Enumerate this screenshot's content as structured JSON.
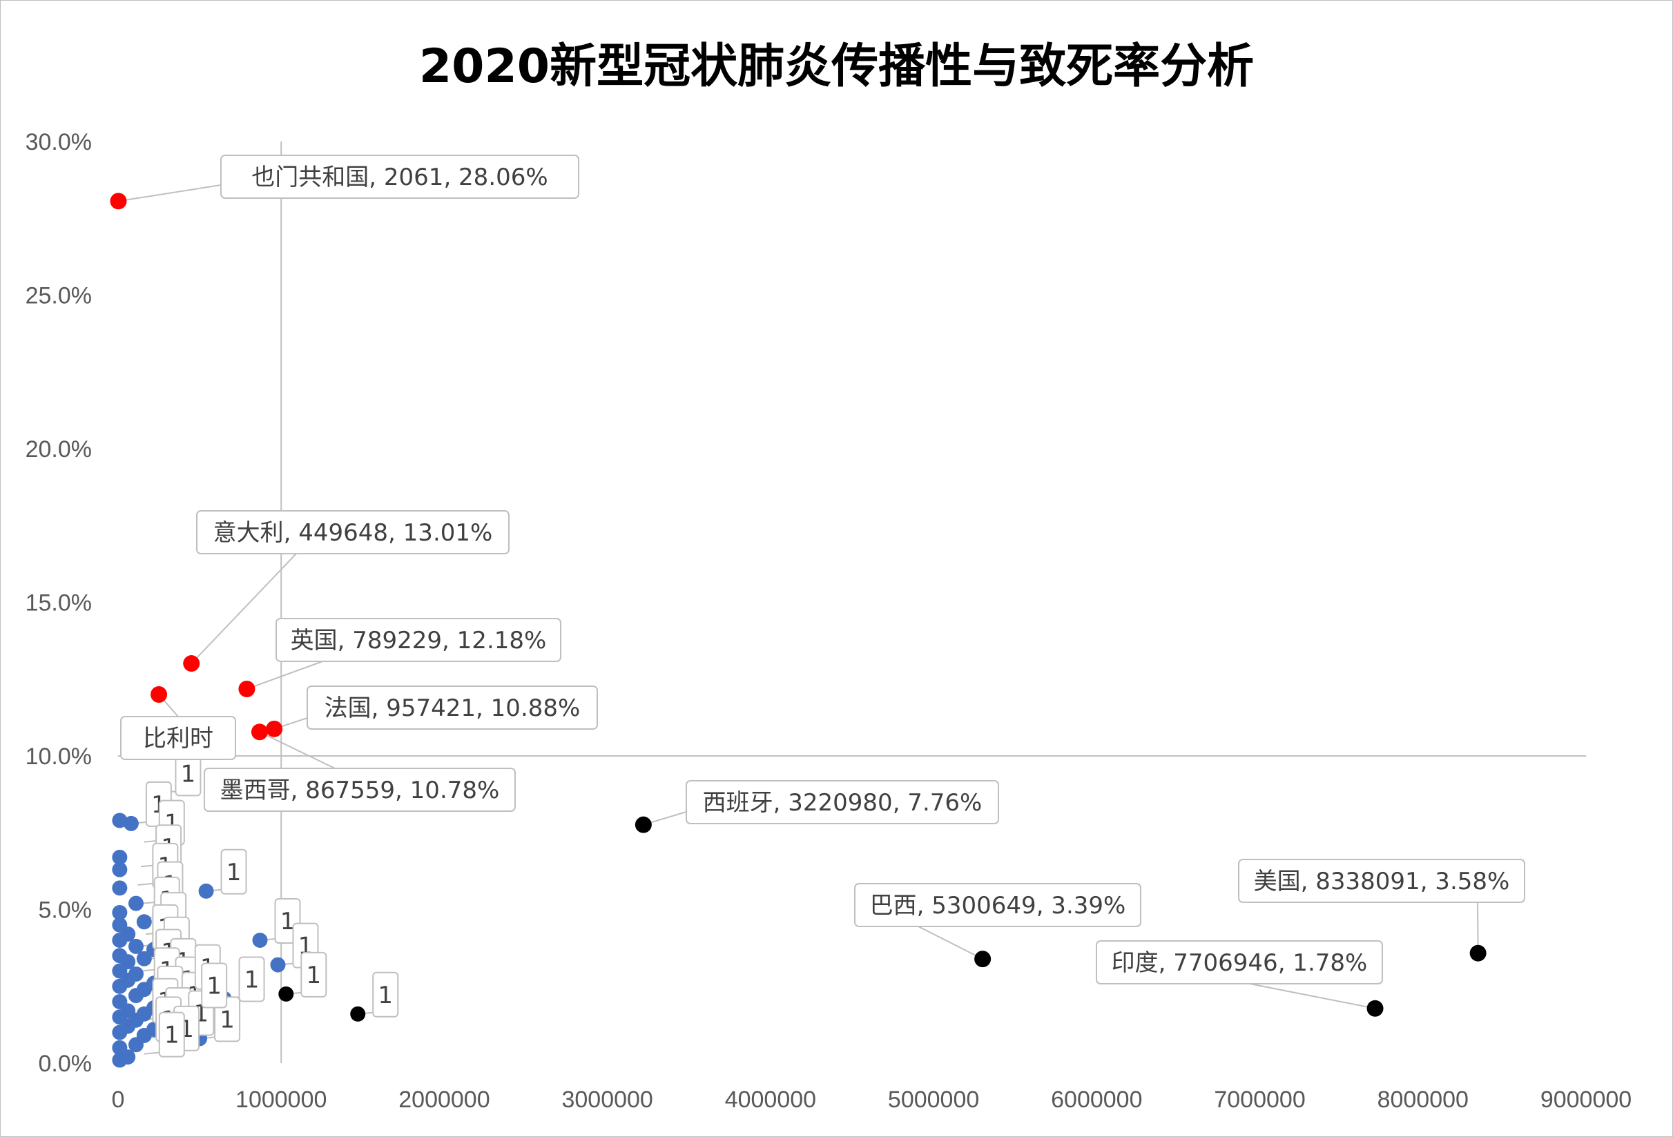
{
  "chart_data": {
    "type": "scatter",
    "title": "2020新型冠状肺炎传播性与致死率分析",
    "xlabel": "",
    "ylabel": "",
    "xlim": [
      0,
      9000000
    ],
    "ylim": [
      0,
      0.3
    ],
    "x_ticks": [
      "0",
      "1000000",
      "2000000",
      "3000000",
      "4000000",
      "5000000",
      "6000000",
      "7000000",
      "8000000",
      "9000000"
    ],
    "y_ticks": [
      "0.0%",
      "5.0%",
      "10.0%",
      "15.0%",
      "20.0%",
      "25.0%",
      "30.0%"
    ],
    "reference_lines": {
      "x": 1000000,
      "y": 0.1
    },
    "colors": {
      "high_mortality": "#ff0000",
      "high_spread": "#000000",
      "other": "#4472c4",
      "callout_border": "#bfbfbf",
      "reference_line": "#bfbfbf"
    },
    "labeled_points": [
      {
        "x": 2061,
        "y": 0.2806,
        "group": "high_mortality",
        "label": "也门共和国, 2061, 28.06%"
      },
      {
        "x": 449648,
        "y": 0.1301,
        "group": "high_mortality",
        "label": "意大利, 449648, 13.01%"
      },
      {
        "x": 789229,
        "y": 0.1218,
        "group": "high_mortality",
        "label": "英国, 789229, 12.18%"
      },
      {
        "x": 250000,
        "y": 0.12,
        "group": "high_mortality",
        "label": "比利时"
      },
      {
        "x": 957421,
        "y": 0.1088,
        "group": "high_mortality",
        "label": "法国, 957421, 10.88%"
      },
      {
        "x": 867559,
        "y": 0.1078,
        "group": "high_mortality",
        "label": "墨西哥, 867559, 10.78%"
      },
      {
        "x": 3220980,
        "y": 0.0776,
        "group": "high_spread",
        "label": "西班牙, 3220980, 7.76%"
      },
      {
        "x": 5300649,
        "y": 0.0339,
        "group": "high_spread",
        "label": "巴西, 5300649, 3.39%"
      },
      {
        "x": 8338091,
        "y": 0.0358,
        "group": "high_spread",
        "label": "美国, 8338091, 3.58%"
      },
      {
        "x": 7706946,
        "y": 0.0178,
        "group": "high_spread",
        "label": "印度, 7706946, 1.78%"
      }
    ],
    "unlabeled_points": [
      {
        "x": 1030000,
        "y": 0.0225,
        "group": "high_spread"
      },
      {
        "x": 1470000,
        "y": 0.016,
        "group": "high_spread"
      },
      {
        "x": 260000,
        "y": 0.088,
        "group": "other"
      },
      {
        "x": 10000,
        "y": 0.079,
        "group": "other"
      },
      {
        "x": 80000,
        "y": 0.078,
        "group": "other"
      },
      {
        "x": 540000,
        "y": 0.056,
        "group": "other"
      },
      {
        "x": 870000,
        "y": 0.04,
        "group": "other"
      },
      {
        "x": 980000,
        "y": 0.032,
        "group": "other"
      },
      {
        "x": 650000,
        "y": 0.021,
        "group": "other"
      },
      {
        "x": 500000,
        "y": 0.008,
        "group": "other"
      },
      {
        "x": 10000,
        "y": 0.067,
        "group": "other"
      },
      {
        "x": 10000,
        "y": 0.063,
        "group": "other"
      },
      {
        "x": 10000,
        "y": 0.057,
        "group": "other"
      },
      {
        "x": 10000,
        "y": 0.049,
        "group": "other"
      },
      {
        "x": 10000,
        "y": 0.045,
        "group": "other"
      },
      {
        "x": 10000,
        "y": 0.04,
        "group": "other"
      },
      {
        "x": 10000,
        "y": 0.035,
        "group": "other"
      },
      {
        "x": 10000,
        "y": 0.03,
        "group": "other"
      },
      {
        "x": 10000,
        "y": 0.025,
        "group": "other"
      },
      {
        "x": 10000,
        "y": 0.02,
        "group": "other"
      },
      {
        "x": 10000,
        "y": 0.015,
        "group": "other"
      },
      {
        "x": 10000,
        "y": 0.01,
        "group": "other"
      },
      {
        "x": 10000,
        "y": 0.005,
        "group": "other"
      },
      {
        "x": 10000,
        "y": 0.001,
        "group": "other"
      },
      {
        "x": 60000,
        "y": 0.002,
        "group": "other"
      },
      {
        "x": 60000,
        "y": 0.042,
        "group": "other"
      },
      {
        "x": 60000,
        "y": 0.033,
        "group": "other"
      },
      {
        "x": 60000,
        "y": 0.027,
        "group": "other"
      },
      {
        "x": 60000,
        "y": 0.017,
        "group": "other"
      },
      {
        "x": 60000,
        "y": 0.012,
        "group": "other"
      },
      {
        "x": 110000,
        "y": 0.052,
        "group": "other"
      },
      {
        "x": 110000,
        "y": 0.038,
        "group": "other"
      },
      {
        "x": 110000,
        "y": 0.029,
        "group": "other"
      },
      {
        "x": 110000,
        "y": 0.022,
        "group": "other"
      },
      {
        "x": 110000,
        "y": 0.014,
        "group": "other"
      },
      {
        "x": 110000,
        "y": 0.006,
        "group": "other"
      },
      {
        "x": 160000,
        "y": 0.046,
        "group": "other"
      },
      {
        "x": 160000,
        "y": 0.034,
        "group": "other"
      },
      {
        "x": 160000,
        "y": 0.024,
        "group": "other"
      },
      {
        "x": 160000,
        "y": 0.016,
        "group": "other"
      },
      {
        "x": 160000,
        "y": 0.009,
        "group": "other"
      },
      {
        "x": 220000,
        "y": 0.037,
        "group": "other"
      },
      {
        "x": 220000,
        "y": 0.026,
        "group": "other"
      },
      {
        "x": 220000,
        "y": 0.018,
        "group": "other"
      },
      {
        "x": 220000,
        "y": 0.011,
        "group": "other"
      },
      {
        "x": 280000,
        "y": 0.031,
        "group": "other"
      },
      {
        "x": 280000,
        "y": 0.023,
        "group": "other"
      },
      {
        "x": 280000,
        "y": 0.014,
        "group": "other"
      },
      {
        "x": 350000,
        "y": 0.028,
        "group": "other"
      },
      {
        "x": 350000,
        "y": 0.019,
        "group": "other"
      },
      {
        "x": 420000,
        "y": 0.024,
        "group": "other"
      },
      {
        "x": 420000,
        "y": 0.012,
        "group": "other"
      }
    ],
    "placeholder_callouts": [
      {
        "x": 260000,
        "y": 0.088,
        "text": "1"
      },
      {
        "x": 80000,
        "y": 0.078,
        "text": "1"
      },
      {
        "x": 540000,
        "y": 0.056,
        "text": "1"
      },
      {
        "x": 870000,
        "y": 0.04,
        "text": "1"
      },
      {
        "x": 980000,
        "y": 0.032,
        "text": "1"
      },
      {
        "x": 1030000,
        "y": 0.0225,
        "text": "1"
      },
      {
        "x": 1470000,
        "y": 0.016,
        "text": "1"
      },
      {
        "x": 650000,
        "y": 0.021,
        "text": "1"
      },
      {
        "x": 500000,
        "y": 0.008,
        "text": "1"
      },
      {
        "x": 160000,
        "y": 0.072,
        "text": "1"
      },
      {
        "x": 140000,
        "y": 0.064,
        "text": "1"
      },
      {
        "x": 120000,
        "y": 0.058,
        "text": "1"
      },
      {
        "x": 150000,
        "y": 0.052,
        "text": "1"
      },
      {
        "x": 130000,
        "y": 0.047,
        "text": "1"
      },
      {
        "x": 170000,
        "y": 0.042,
        "text": "1"
      },
      {
        "x": 120000,
        "y": 0.038,
        "text": "1"
      },
      {
        "x": 190000,
        "y": 0.034,
        "text": "1"
      },
      {
        "x": 140000,
        "y": 0.03,
        "text": "1"
      },
      {
        "x": 230000,
        "y": 0.027,
        "text": "1"
      },
      {
        "x": 130000,
        "y": 0.024,
        "text": "1"
      },
      {
        "x": 260000,
        "y": 0.021,
        "text": "1"
      },
      {
        "x": 150000,
        "y": 0.018,
        "text": "1"
      },
      {
        "x": 300000,
        "y": 0.016,
        "text": "1"
      },
      {
        "x": 120000,
        "y": 0.014,
        "text": "1"
      },
      {
        "x": 200000,
        "y": 0.011,
        "text": "1"
      },
      {
        "x": 340000,
        "y": 0.01,
        "text": "1"
      },
      {
        "x": 140000,
        "y": 0.008,
        "text": "1"
      },
      {
        "x": 250000,
        "y": 0.005,
        "text": "1"
      },
      {
        "x": 160000,
        "y": 0.003,
        "text": "1"
      },
      {
        "x": 380000,
        "y": 0.025,
        "text": "1"
      },
      {
        "x": 420000,
        "y": 0.019,
        "text": "1"
      }
    ]
  }
}
